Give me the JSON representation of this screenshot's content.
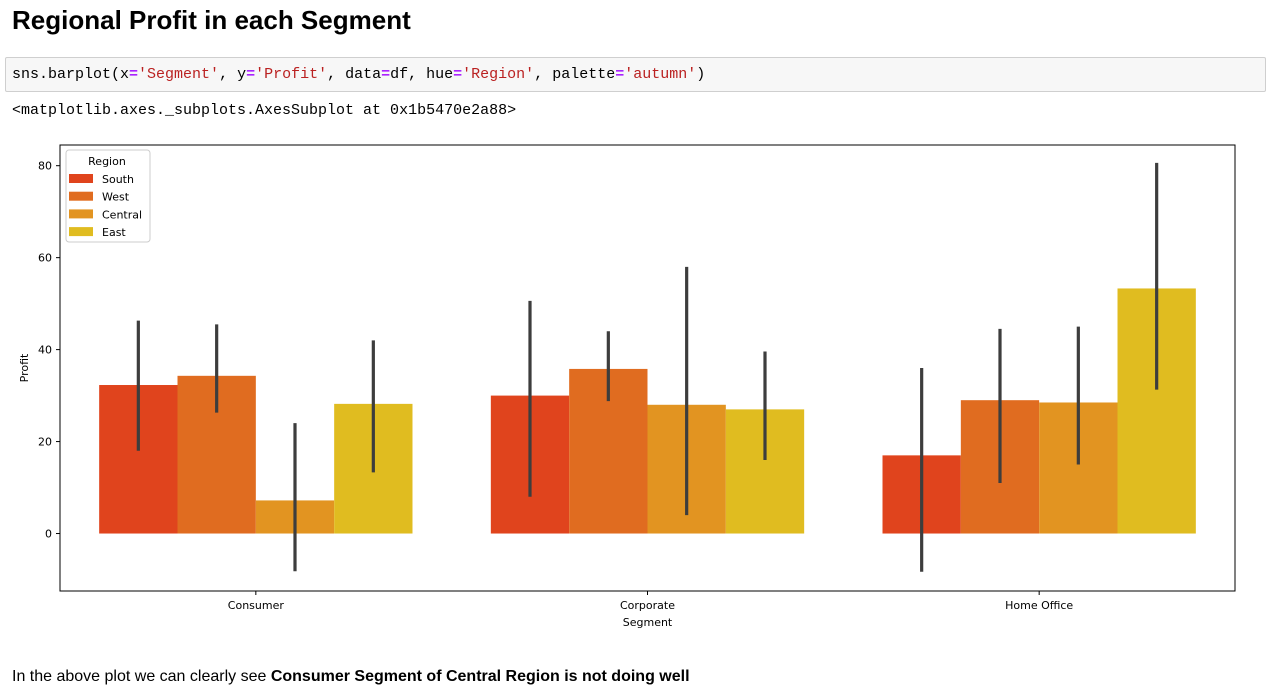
{
  "heading": "Regional Profit in each Segment",
  "code": {
    "p1": "sns.barplot(x",
    "op1": "=",
    "s1": "'Segment'",
    "p2": ", y",
    "op2": "=",
    "s2": "'Profit'",
    "p3": ", data",
    "op3": "=",
    "p4": "df, hue",
    "op4": "=",
    "s3": "'Region'",
    "p5": ", palette",
    "op5": "=",
    "s4": "'autumn'",
    "p6": ")"
  },
  "output_text": "<matplotlib.axes._subplots.AxesSubplot at 0x1b5470e2a88>",
  "chart_data": {
    "type": "bar",
    "xlabel": "Segment",
    "ylabel": "Profit",
    "categories": [
      "Consumer",
      "Corporate",
      "Home Office"
    ],
    "ylim": [
      -12.5,
      84.5
    ],
    "yticks": [
      0,
      20,
      40,
      60,
      80
    ],
    "grid": false,
    "legend": {
      "title": "Region",
      "placement": "top-left"
    },
    "series": [
      {
        "name": "South",
        "color": "#e0441d",
        "values": [
          32.3,
          30.0,
          17.0
        ],
        "ci": [
          [
            18,
            46.3
          ],
          [
            8,
            50.6
          ],
          [
            -8.3,
            36
          ]
        ]
      },
      {
        "name": "West",
        "color": "#e06c20",
        "values": [
          34.3,
          35.8,
          29.0
        ],
        "ci": [
          [
            26.3,
            45.5
          ],
          [
            28.8,
            44
          ],
          [
            11,
            44.5
          ]
        ]
      },
      {
        "name": "Central",
        "color": "#e29421",
        "values": [
          7.2,
          28.0,
          28.5
        ],
        "ci": [
          [
            -8.2,
            24
          ],
          [
            4,
            58
          ],
          [
            15,
            45
          ]
        ]
      },
      {
        "name": "East",
        "color": "#e0bc20",
        "values": [
          28.2,
          27.0,
          53.3
        ],
        "ci": [
          [
            13.3,
            42
          ],
          [
            16,
            39.6
          ],
          [
            31.3,
            80.6
          ]
        ]
      }
    ]
  },
  "conclusion": {
    "plain": "In the above plot we can clearly see ",
    "bold": "Consumer Segment of Central Region is not doing well"
  }
}
